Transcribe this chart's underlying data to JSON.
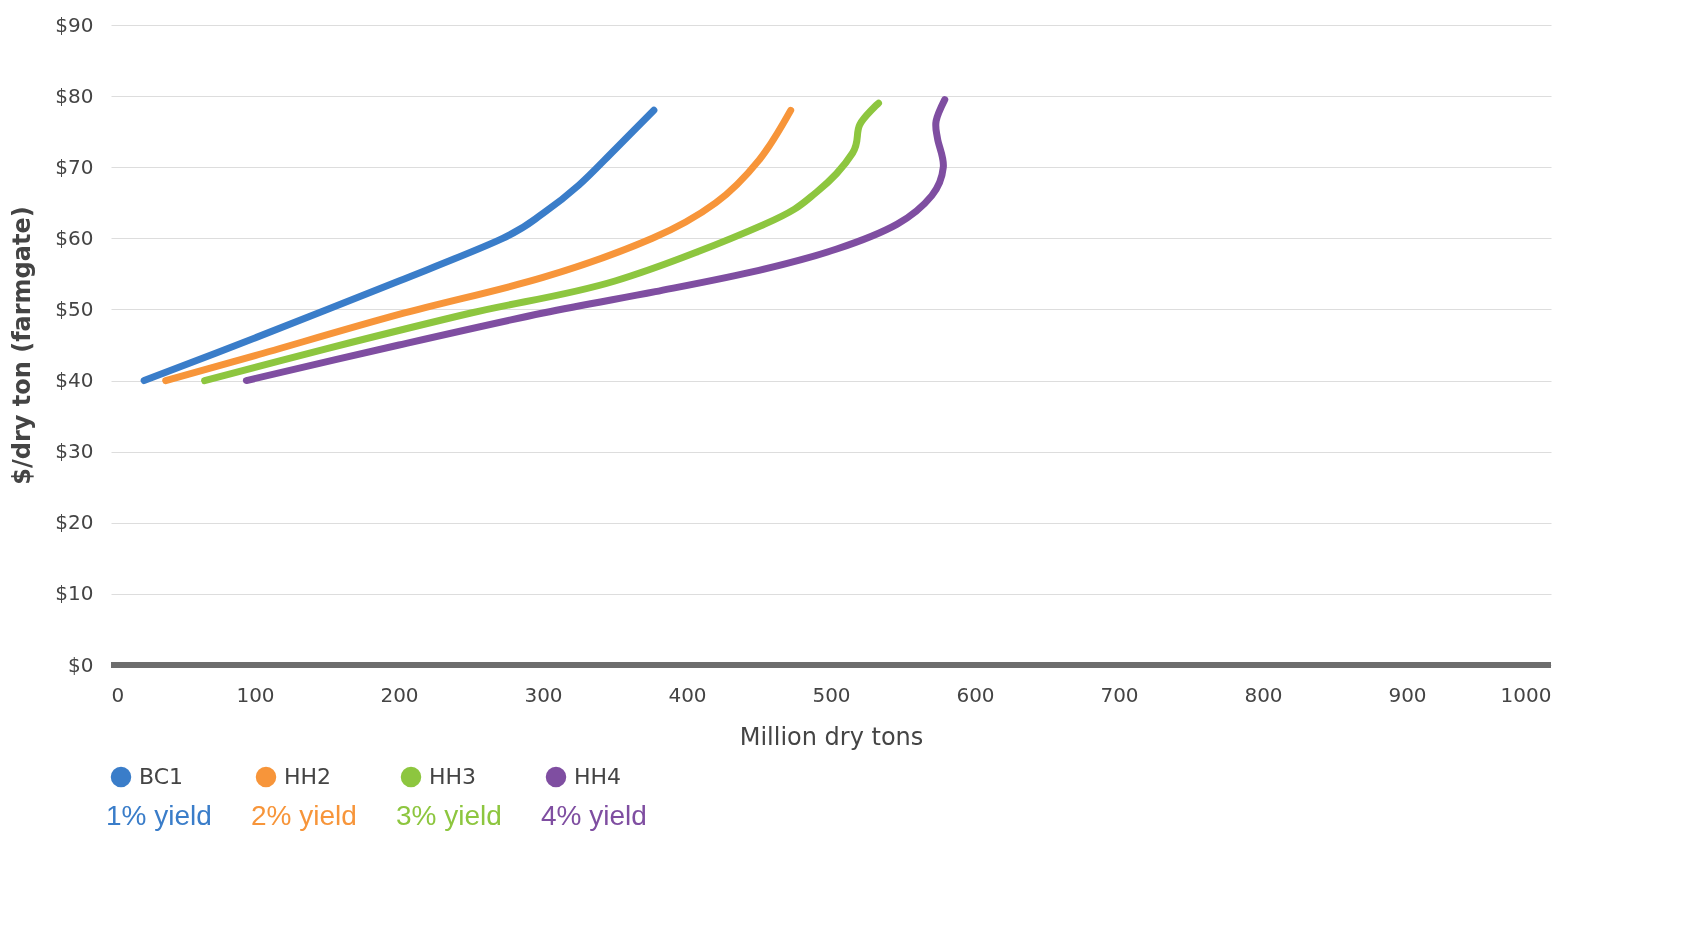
{
  "chart_data": {
    "type": "line",
    "xlabel": "Million dry tons",
    "ylabel": "$/dry ton (farmgate)",
    "xlim": [
      0,
      1000
    ],
    "xticks": [
      0,
      100,
      200,
      300,
      400,
      500,
      600,
      700,
      800,
      900,
      1000
    ],
    "ylim": [
      0,
      90
    ],
    "yticks": [
      {
        "value": 0,
        "label": "$0"
      },
      {
        "value": 10,
        "label": "$10"
      },
      {
        "value": 20,
        "label": "$20"
      },
      {
        "value": 30,
        "label": "$30"
      },
      {
        "value": 40,
        "label": "$40"
      },
      {
        "value": 50,
        "label": "$50"
      },
      {
        "value": 60,
        "label": "$60"
      },
      {
        "value": 70,
        "label": "$70"
      },
      {
        "value": 80,
        "label": "$80"
      },
      {
        "value": 90,
        "label": "$90"
      }
    ],
    "grid": "y",
    "legend": "bottom left",
    "marker": "none",
    "line_style": "solid",
    "annotations": [
      "1% yield",
      "2% yield",
      "3% yield",
      "4% yield"
    ],
    "series": [
      {
        "name": "BC1",
        "color": "#3a7dc9",
        "x": [
          23,
          100,
          200,
          272,
          300,
          325,
          350,
          377
        ],
        "values": [
          40,
          46,
          54,
          60,
          63.5,
          67.5,
          72.5,
          78
        ]
      },
      {
        "name": "HH2",
        "color": "#f7953a",
        "x": [
          38,
          100,
          200,
          300,
          376,
          420,
          450,
          472
        ],
        "values": [
          40,
          43.5,
          49.3,
          54.5,
          60,
          65,
          71,
          78
        ]
      },
      {
        "name": "HH3",
        "color": "#8dc63f",
        "x": [
          65,
          150,
          250,
          350,
          454,
          490,
          515,
          520,
          533
        ],
        "values": [
          40,
          44.5,
          49.5,
          54,
          62,
          66.5,
          72,
          76,
          79
        ]
      },
      {
        "name": "HH4",
        "color": "#7f4ea1",
        "x": [
          94,
          200,
          300,
          378,
          450,
          504,
          546,
          570,
          578,
          574,
          573,
          579
        ],
        "values": [
          40,
          45,
          49.5,
          52.5,
          55.5,
          58.5,
          62,
          66,
          70,
          74,
          76.5,
          79.5
        ]
      }
    ]
  }
}
